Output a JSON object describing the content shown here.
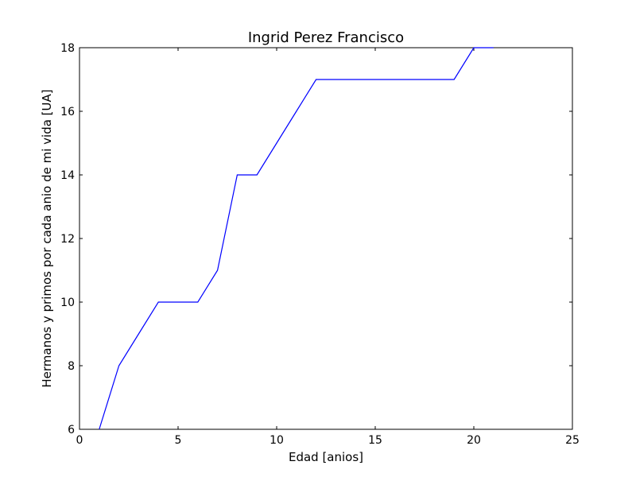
{
  "chart_data": {
    "type": "line",
    "title": "Ingrid Perez Francisco",
    "xlabel": "Edad [anios]",
    "ylabel": "Hermanos y primos por cada anio de mi vida [UA]",
    "xlim": [
      0,
      25
    ],
    "ylim": [
      6,
      18
    ],
    "xticks": [
      0,
      5,
      10,
      15,
      20,
      25
    ],
    "yticks": [
      6,
      8,
      10,
      12,
      14,
      16,
      18
    ],
    "grid": false,
    "series": [
      {
        "color": "#0000ff",
        "x": [
          1,
          2,
          3,
          4,
          5,
          6,
          7,
          8,
          9,
          10,
          11,
          12,
          13,
          14,
          15,
          16,
          17,
          18,
          19,
          20,
          21
        ],
        "y": [
          6,
          8,
          9,
          10,
          10,
          10,
          11,
          14,
          14,
          15,
          16,
          17,
          17,
          17,
          17,
          17,
          17,
          17,
          17,
          18,
          18
        ]
      }
    ]
  }
}
